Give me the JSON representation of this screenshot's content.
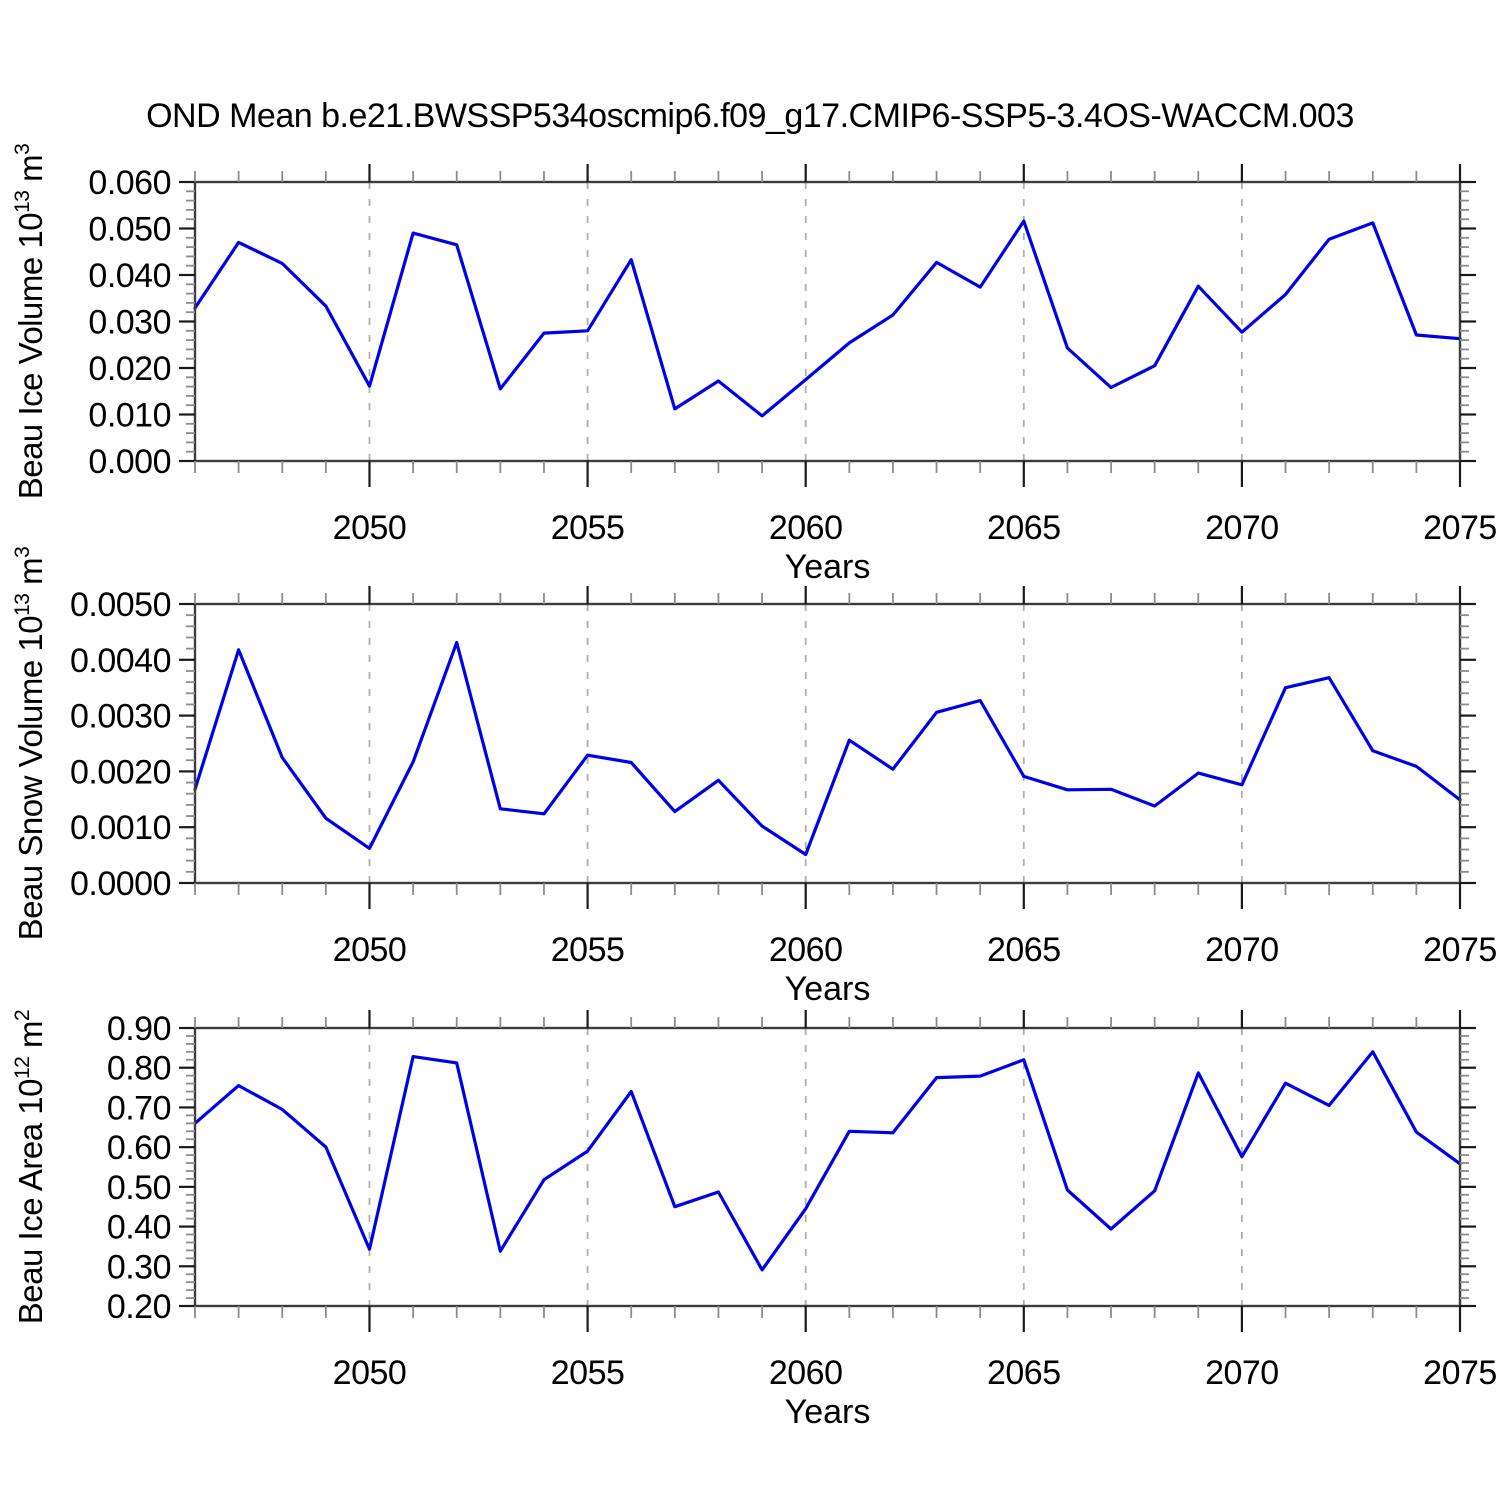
{
  "page": {
    "title": "OND Mean b.e21.BWSSP534oscmip6.f09_g17.CMIP6-SSP5-3.4OS-WACCM.003"
  },
  "style": {
    "line_color": "#0000e8",
    "grid_color": "#b0b0b0",
    "box_color": "#3c3c3c",
    "major_tick_color": "#1a1a1a",
    "minor_tick_color": "#8c8c8c",
    "text_color": "#000000",
    "background": "#ffffff"
  },
  "chart_data": [
    {
      "name": "beau-ice-volume",
      "type": "line",
      "ylabel": "Beau Ice Volume 10^13 m^3",
      "xlabel": "Years",
      "xlim": [
        2046,
        2075
      ],
      "ylim": [
        0,
        0.06
      ],
      "grid": "vertical-dashed",
      "legend_position": "none",
      "x_major_ticks": [
        2050,
        2055,
        2060,
        2065,
        2070,
        2075
      ],
      "x_major_labels": [
        "2050",
        "2055",
        "2060",
        "2065",
        "2070",
        "2075"
      ],
      "x_minor_step": 1,
      "x_gridlines": [
        2050,
        2055,
        2060,
        2065,
        2070
      ],
      "y_major_ticks": [
        0,
        0.01,
        0.02,
        0.03,
        0.04,
        0.05,
        0.06
      ],
      "y_major_labels": [
        "0.000",
        "0.010",
        "0.020",
        "0.030",
        "0.040",
        "0.050",
        "0.060"
      ],
      "y_minor_step": 0.002,
      "years": [
        2046,
        2047,
        2048,
        2049,
        2050,
        2051,
        2052,
        2053,
        2054,
        2055,
        2056,
        2057,
        2058,
        2059,
        2060,
        2061,
        2062,
        2063,
        2064,
        2065,
        2066,
        2067,
        2068,
        2069,
        2070,
        2071,
        2072,
        2073,
        2074,
        2075
      ],
      "values": [
        0.0329,
        0.047,
        0.0425,
        0.0333,
        0.0161,
        0.049,
        0.0465,
        0.0155,
        0.0275,
        0.028,
        0.0433,
        0.0112,
        0.0172,
        0.0097,
        0.0175,
        0.0254,
        0.0314,
        0.0427,
        0.0374,
        0.0516,
        0.0243,
        0.0158,
        0.0205,
        0.0376,
        0.0277,
        0.0358,
        0.0477,
        0.0512,
        0.0271,
        0.0263
      ]
    },
    {
      "name": "beau-snow-volume",
      "type": "line",
      "ylabel": "Beau Snow Volume 10^13 m^3",
      "xlabel": "Years",
      "xlim": [
        2046,
        2075
      ],
      "ylim": [
        0,
        0.005
      ],
      "grid": "vertical-dashed",
      "legend_position": "none",
      "x_major_ticks": [
        2050,
        2055,
        2060,
        2065,
        2070,
        2075
      ],
      "x_major_labels": [
        "2050",
        "2055",
        "2060",
        "2065",
        "2070",
        "2075"
      ],
      "x_minor_step": 1,
      "x_gridlines": [
        2050,
        2055,
        2060,
        2065,
        2070
      ],
      "y_major_ticks": [
        0,
        0.001,
        0.002,
        0.003,
        0.004,
        0.005
      ],
      "y_major_labels": [
        "0.0000",
        "0.0010",
        "0.0020",
        "0.0030",
        "0.0040",
        "0.0050"
      ],
      "y_minor_step": 0.0002,
      "years": [
        2046,
        2047,
        2048,
        2049,
        2050,
        2051,
        2052,
        2053,
        2054,
        2055,
        2056,
        2057,
        2058,
        2059,
        2060,
        2061,
        2062,
        2063,
        2064,
        2065,
        2066,
        2067,
        2068,
        2069,
        2070,
        2071,
        2072,
        2073,
        2074,
        2075
      ],
      "values": [
        0.00168,
        0.00418,
        0.00225,
        0.00116,
        0.00062,
        0.00217,
        0.00431,
        0.00133,
        0.00124,
        0.00229,
        0.00216,
        0.00128,
        0.00184,
        0.00102,
        0.00051,
        0.00256,
        0.00204,
        0.00306,
        0.00327,
        0.00191,
        0.00167,
        0.00168,
        0.00138,
        0.00197,
        0.00176,
        0.0035,
        0.00368,
        0.00237,
        0.00209,
        0.00149
      ]
    },
    {
      "name": "beau-ice-area",
      "type": "line",
      "ylabel": "Beau Ice Area 10^12 m^2",
      "xlabel": "Years",
      "xlim": [
        2046,
        2075
      ],
      "ylim": [
        0.2,
        0.9
      ],
      "grid": "vertical-dashed",
      "legend_position": "none",
      "x_major_ticks": [
        2050,
        2055,
        2060,
        2065,
        2070,
        2075
      ],
      "x_major_labels": [
        "2050",
        "2055",
        "2060",
        "2065",
        "2070",
        "2075"
      ],
      "x_minor_step": 1,
      "x_gridlines": [
        2050,
        2055,
        2060,
        2065,
        2070
      ],
      "y_major_ticks": [
        0.2,
        0.3,
        0.4,
        0.5,
        0.6,
        0.7,
        0.8,
        0.9
      ],
      "y_major_labels": [
        "0.20",
        "0.30",
        "0.40",
        "0.50",
        "0.60",
        "0.70",
        "0.80",
        "0.90"
      ],
      "y_minor_step": 0.02,
      "years": [
        2046,
        2047,
        2048,
        2049,
        2050,
        2051,
        2052,
        2053,
        2054,
        2055,
        2056,
        2057,
        2058,
        2059,
        2060,
        2061,
        2062,
        2063,
        2064,
        2065,
        2066,
        2067,
        2068,
        2069,
        2070,
        2071,
        2072,
        2073,
        2074,
        2075
      ],
      "values": [
        0.66,
        0.755,
        0.695,
        0.6,
        0.343,
        0.828,
        0.812,
        0.338,
        0.518,
        0.59,
        0.74,
        0.45,
        0.487,
        0.291,
        0.445,
        0.64,
        0.636,
        0.775,
        0.779,
        0.82,
        0.492,
        0.394,
        0.49,
        0.787,
        0.576,
        0.761,
        0.705,
        0.84,
        0.638,
        0.558
      ]
    }
  ]
}
